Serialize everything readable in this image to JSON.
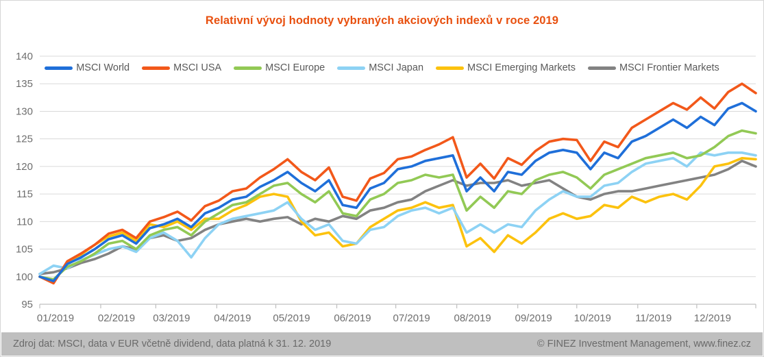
{
  "window": {
    "background": "#ffffff",
    "border_color": "#d6d6d6"
  },
  "title": {
    "text": "Relativní vývoj hodnoty vybraných akciových indexů v roce 2019",
    "color": "#e8500f"
  },
  "footer": {
    "left": "Zdroj dat: MSCI, data v EUR včetně dividend, data platná k 31. 12. 2019",
    "right": "© FINEZ Investment Management, www.finez.cz",
    "background": "#bfbfbf",
    "text_color": "#6a6a6a"
  },
  "chart_data": {
    "type": "line",
    "title": "Relativní vývoj hodnoty vybraných akciových indexů v roce 2019",
    "xlabel": "",
    "ylabel": "",
    "ylim": [
      95,
      140
    ],
    "y_step": 5,
    "grid": "horizontal",
    "legend_position": "top",
    "axis_text_color": "#6e6e6e",
    "gridline_color": "#d9d9d9",
    "axis_line_color": "#bfbfbf",
    "x_axis": {
      "tick_labels": [
        "01/2019",
        "02/2019",
        "03/2019",
        "04/2019",
        "05/2019",
        "06/2019",
        "07/2019",
        "08/2019",
        "09/2019",
        "10/2019",
        "11/2019",
        "12/2019"
      ],
      "tick_days": [
        0,
        31,
        59,
        90,
        120,
        151,
        181,
        212,
        243,
        273,
        304,
        334,
        364
      ],
      "max_day": 364
    },
    "x_days": [
      0,
      7,
      14,
      21,
      28,
      35,
      42,
      49,
      56,
      63,
      70,
      77,
      84,
      91,
      98,
      105,
      112,
      119,
      126,
      133,
      140,
      147,
      154,
      161,
      168,
      175,
      182,
      189,
      196,
      203,
      210,
      217,
      224,
      231,
      238,
      245,
      252,
      259,
      266,
      273,
      280,
      287,
      294,
      301,
      308,
      315,
      322,
      329,
      336,
      343,
      350,
      357,
      364
    ],
    "series": [
      {
        "name": "MSCI World",
        "color": "#1f6fd9",
        "values": [
          100,
          99.2,
          102.3,
          103.5,
          105.0,
          106.8,
          107.5,
          106.0,
          108.8,
          109.5,
          110.5,
          109.0,
          111.5,
          112.5,
          114.0,
          114.5,
          116.3,
          117.5,
          119.0,
          117.0,
          115.5,
          117.5,
          113.0,
          112.5,
          116.0,
          117.0,
          119.5,
          120.0,
          121.0,
          121.5,
          122.0,
          115.5,
          118.0,
          115.5,
          119.0,
          118.5,
          121.0,
          122.5,
          123.0,
          122.5,
          119.5,
          122.5,
          121.5,
          124.5,
          125.5,
          127.0,
          128.5,
          127.0,
          129.0,
          127.5,
          130.5,
          131.5,
          130.0
        ]
      },
      {
        "name": "MSCI USA",
        "color": "#f2581a",
        "values": [
          100,
          98.8,
          102.8,
          104.2,
          105.8,
          107.8,
          108.5,
          107.0,
          110.0,
          110.8,
          111.8,
          110.2,
          112.8,
          113.8,
          115.5,
          116.0,
          118.0,
          119.5,
          121.3,
          119.0,
          117.5,
          119.8,
          114.5,
          113.8,
          117.8,
          118.8,
          121.3,
          121.8,
          123.0,
          124.0,
          125.3,
          118.0,
          120.5,
          117.8,
          121.5,
          120.3,
          122.8,
          124.5,
          125.0,
          124.8,
          121.0,
          124.5,
          123.5,
          127.0,
          128.5,
          130.0,
          131.5,
          130.3,
          132.5,
          130.5,
          133.5,
          135.0,
          133.3
        ]
      },
      {
        "name": "MSCI Europe",
        "color": "#92c955",
        "values": [
          100,
          99.5,
          101.8,
          102.8,
          104.2,
          106.0,
          106.5,
          105.0,
          107.5,
          108.5,
          109.0,
          107.5,
          110.0,
          111.5,
          113.0,
          113.5,
          115.0,
          116.5,
          117.0,
          115.0,
          113.5,
          115.5,
          111.5,
          111.0,
          114.0,
          115.0,
          117.0,
          117.5,
          118.5,
          118.0,
          118.5,
          112.0,
          114.5,
          112.5,
          115.5,
          115.0,
          117.5,
          118.5,
          119.0,
          118.0,
          116.0,
          118.5,
          119.5,
          120.5,
          121.5,
          122.0,
          122.5,
          121.5,
          122.0,
          123.5,
          125.5,
          126.5,
          126.0
        ]
      },
      {
        "name": "MSCI Japan",
        "color": "#8dd2f4",
        "values": [
          100.5,
          102.0,
          101.5,
          103.0,
          104.0,
          105.0,
          105.5,
          104.5,
          107.0,
          108.0,
          106.5,
          103.5,
          107.0,
          109.5,
          110.5,
          111.0,
          111.5,
          112.0,
          113.5,
          110.5,
          108.5,
          109.5,
          106.5,
          106.0,
          108.5,
          109.0,
          111.0,
          112.0,
          112.5,
          111.5,
          112.5,
          108.0,
          109.5,
          108.0,
          109.5,
          109.0,
          112.0,
          114.0,
          115.5,
          114.5,
          114.5,
          116.5,
          117.0,
          119.0,
          120.5,
          121.0,
          121.5,
          120.0,
          122.5,
          122.0,
          122.5,
          122.5,
          122.0
        ]
      },
      {
        "name": "MSCI Emerging Markets",
        "color": "#fcc20e",
        "values": [
          100,
          99.0,
          102.5,
          104.0,
          105.8,
          107.3,
          108.0,
          106.5,
          109.5,
          109.0,
          110.0,
          108.5,
          110.5,
          110.5,
          112.0,
          113.0,
          114.5,
          115.0,
          114.5,
          110.0,
          107.5,
          108.0,
          105.5,
          106.0,
          109.0,
          110.5,
          112.0,
          112.5,
          113.5,
          112.5,
          113.0,
          105.5,
          107.0,
          104.5,
          107.5,
          106.0,
          108.0,
          110.5,
          111.5,
          110.5,
          111.0,
          113.0,
          112.5,
          114.5,
          113.5,
          114.5,
          115.0,
          114.0,
          116.5,
          120.0,
          120.5,
          121.5,
          121.3
        ]
      },
      {
        "name": "MSCI Frontier Markets",
        "color": "#828282",
        "values": [
          100.5,
          100.8,
          101.5,
          102.5,
          103.2,
          104.2,
          105.5,
          105.0,
          107.0,
          107.5,
          106.5,
          107.0,
          108.5,
          109.5,
          110.0,
          110.5,
          110.0,
          110.5,
          110.8,
          109.5,
          110.5,
          110.0,
          111.0,
          110.5,
          112.0,
          112.5,
          113.5,
          114.0,
          115.5,
          116.5,
          117.5,
          116.5,
          117.0,
          117.0,
          117.5,
          116.5,
          117.0,
          117.5,
          116.0,
          114.5,
          114.0,
          115.0,
          115.5,
          115.5,
          116.0,
          116.5,
          117.0,
          117.5,
          118.0,
          118.5,
          119.5,
          121.0,
          120.0
        ]
      }
    ]
  }
}
